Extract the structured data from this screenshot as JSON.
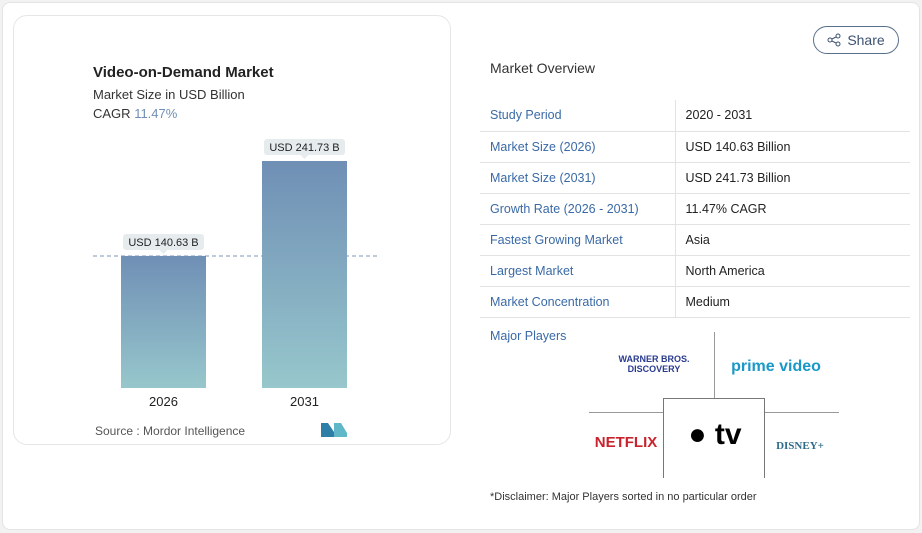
{
  "chart_data": {
    "type": "bar",
    "title": "Video-on-Demand Market",
    "subtitle": "Market Size in USD Billion",
    "cagr_label": "CAGR",
    "cagr_value": "11.47%",
    "categories": [
      "2026",
      "2031"
    ],
    "values": [
      140.63,
      241.73
    ],
    "data_labels": [
      "USD 140.63 B",
      "USD 241.73 B"
    ],
    "colors": [
      "#6f8fb5",
      "#97c7cc"
    ],
    "reference_line": "dashed at 2026 value",
    "source": "Source :  Mordor Intelligence"
  },
  "share_label": "Share",
  "overview": {
    "title": "Market Overview",
    "rows": [
      {
        "label": "Study Period",
        "value": "2020 - 2031"
      },
      {
        "label": "Market Size (2026)",
        "value": "USD 140.63 Billion"
      },
      {
        "label": "Market Size (2031)",
        "value": "USD 241.73 Billion"
      },
      {
        "label": "Growth Rate (2026 - 2031)",
        "value": "11.47% CAGR"
      },
      {
        "label": "Fastest Growing Market",
        "value": "Asia"
      },
      {
        "label": "Largest Market",
        "value": "North America"
      },
      {
        "label": "Market Concentration",
        "value": "Medium"
      }
    ]
  },
  "major_players": {
    "title": "Major Players",
    "logos": [
      "WARNER BROS. DISCOVERY",
      "prime video",
      "NETFLIX",
      "tv",
      "DISNEY+"
    ]
  },
  "disclaimer": "*Disclaimer: Major Players sorted in no particular order"
}
